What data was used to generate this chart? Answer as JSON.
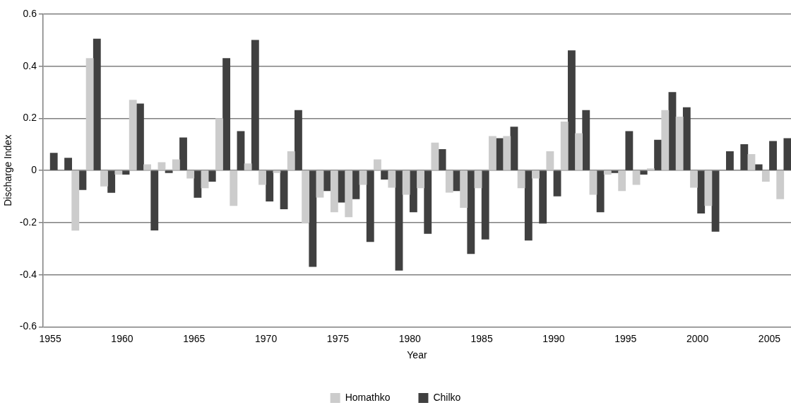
{
  "chart_data": {
    "type": "bar",
    "xlabel": "Year",
    "ylabel": "Discharge Index",
    "categories": [
      "1955",
      null,
      null,
      null,
      null,
      "1960",
      null,
      null,
      null,
      null,
      "1965",
      null,
      null,
      null,
      null,
      "1970",
      null,
      null,
      null,
      null,
      "1975",
      null,
      null,
      null,
      null,
      "1980",
      null,
      null,
      null,
      null,
      "1985",
      null,
      null,
      null,
      null,
      "1990",
      null,
      null,
      null,
      null,
      "1995",
      null,
      null,
      null,
      null,
      "2000",
      null,
      null,
      null,
      null,
      "2005",
      null
    ],
    "series": [
      {
        "name": "Homathko",
        "color": "#cccccc",
        "values": [
          null,
          null,
          -0.23,
          0.43,
          -0.06,
          -0.015,
          0.27,
          0.023,
          0.031,
          0.042,
          -0.03,
          -0.067,
          0.2,
          -0.135,
          0.026,
          -0.054,
          -0.009,
          0.073,
          -0.2,
          -0.103,
          -0.159,
          -0.178,
          -0.054,
          0.042,
          -0.065,
          -0.092,
          -0.067,
          0.106,
          -0.084,
          -0.142,
          -0.067,
          0.131,
          0.131,
          -0.067,
          -0.03,
          0.073,
          0.187,
          0.142,
          -0.092,
          -0.015,
          -0.078,
          -0.054,
          0.007,
          0.231,
          0.206,
          -0.065,
          -0.135,
          null,
          null,
          0.062,
          -0.042,
          -0.109
        ]
      },
      {
        "name": "Chilko",
        "color": "#404040",
        "values": [
          0.067,
          0.048,
          -0.074,
          0.505,
          -0.085,
          -0.015,
          0.256,
          -0.229,
          -0.009,
          0.126,
          -0.104,
          -0.042,
          0.43,
          0.15,
          0.5,
          -0.118,
          -0.148,
          0.231,
          -0.369,
          -0.078,
          -0.122,
          -0.109,
          -0.273,
          -0.034,
          -0.383,
          -0.159,
          -0.242,
          0.081,
          -0.078,
          -0.319,
          -0.264,
          0.123,
          0.167,
          -0.268,
          -0.203,
          -0.098,
          0.46,
          0.231,
          -0.159,
          -0.009,
          0.15,
          -0.015,
          0.117,
          0.3,
          0.242,
          -0.164,
          -0.234,
          0.073,
          0.1,
          0.023,
          0.112,
          0.123
        ]
      }
    ],
    "ylim": [
      -0.6,
      0.6
    ],
    "yticks": [
      -0.6,
      -0.4,
      -0.2,
      0,
      0.2,
      0.4,
      0.6
    ],
    "grid": "y",
    "legend": "bottom"
  }
}
